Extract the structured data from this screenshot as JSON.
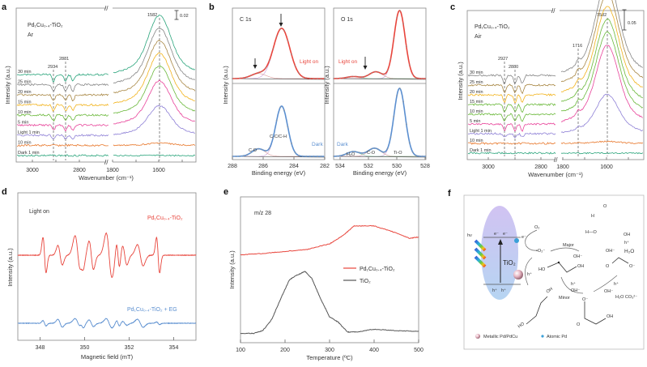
{
  "figure": {
    "panels": [
      "a",
      "b",
      "c",
      "d",
      "e",
      "f"
    ]
  },
  "chart_data": [
    {
      "id": "a",
      "type": "line",
      "title": "Pd1Cu0.4-TiO2",
      "subtitle": "Ar",
      "xlabel": "Wavenumber (cm⁻¹)",
      "ylabel": "Intensity (a.u.)",
      "x_ticks_left": [
        "3000",
        "2800"
      ],
      "x_ticks_right": [
        "1800",
        "1600"
      ],
      "x_range_left": [
        3080,
        2720
      ],
      "x_range_right": [
        1800,
        1480
      ],
      "scale_bar": "0.02",
      "peak_markers": [
        "2934",
        "2881",
        "1582"
      ],
      "series": [
        {
          "name": "Dark 1 min",
          "color": "#2ba57c",
          "offset": 0,
          "peak": 0
        },
        {
          "name": "10 min",
          "color": "#e8772a",
          "offset": 1,
          "peak": 0.05
        },
        {
          "name": "Light 1 min",
          "color": "#8e80d6",
          "offset": 2,
          "peak": 0.6
        },
        {
          "name": "5 min",
          "color": "#e8439a",
          "offset": 3,
          "peak": 0.9
        },
        {
          "name": "10 min",
          "color": "#6ab83a",
          "offset": 4,
          "peak": 1.0
        },
        {
          "name": "15 min",
          "color": "#f2b31c",
          "offset": 5,
          "peak": 1.05
        },
        {
          "name": "20 min",
          "color": "#a88744",
          "offset": 6,
          "peak": 1.1
        },
        {
          "name": "25 min",
          "color": "#858585",
          "offset": 7,
          "peak": 1.15
        },
        {
          "name": "30 min",
          "color": "#2ba57c",
          "offset": 8,
          "peak": 1.2
        }
      ]
    },
    {
      "id": "b-left",
      "type": "line",
      "title": "C 1s",
      "xlabel": "Binding energy (eV)",
      "ylabel": "Intensity (a.u.)",
      "x_ticks": [
        "288",
        "286",
        "284",
        "282"
      ],
      "x_range": [
        288,
        282
      ],
      "series": [
        {
          "name": "Light on",
          "color": "#e8453c",
          "peaks": [
            {
              "center": 284.8,
              "height": 1.0,
              "width": 0.75
            },
            {
              "center": 286.3,
              "height": 0.1,
              "width": 0.7
            }
          ]
        },
        {
          "name": "Dark",
          "color": "#5b8fd0",
          "peaks": [
            {
              "center": 284.8,
              "height": 1.0,
              "width": 0.55
            },
            {
              "center": 286.3,
              "height": 0.15,
              "width": 0.6
            }
          ]
        }
      ],
      "annotations": [
        "C-C/C-H",
        "C-O"
      ]
    },
    {
      "id": "b-right",
      "type": "line",
      "title": "O 1s",
      "xlabel": "Binding energy (eV)",
      "x_ticks": [
        "534",
        "532",
        "530",
        "528"
      ],
      "x_range": [
        535,
        528
      ],
      "series": [
        {
          "name": "Light on",
          "color": "#e8453c",
          "peaks": [
            {
              "center": 530.0,
              "height": 1.0,
              "width": 0.6
            },
            {
              "center": 531.8,
              "height": 0.1,
              "width": 0.7
            },
            {
              "center": 533.5,
              "height": 0.03,
              "width": 0.7
            }
          ]
        },
        {
          "name": "Dark",
          "color": "#5b8fd0",
          "peaks": [
            {
              "center": 530.0,
              "height": 1.0,
              "width": 0.6
            },
            {
              "center": 531.9,
              "height": 0.12,
              "width": 0.7
            },
            {
              "center": 533.5,
              "height": 0.07,
              "width": 0.7
            }
          ]
        }
      ],
      "annotations": [
        "H₂O",
        "C-O",
        "Ti-O"
      ]
    },
    {
      "id": "c",
      "type": "line",
      "title": "Pd1Cu0.4-TiO2",
      "subtitle": "Air",
      "xlabel": "Wavenumber (cm⁻¹)",
      "ylabel": "Intensity (a.u.)",
      "x_ticks_left": [
        "3000",
        "2800"
      ],
      "x_ticks_right": [
        "1800",
        "1600"
      ],
      "scale_bar": "0.05",
      "peak_markers": [
        "2927",
        "2880",
        "1716",
        "1582"
      ],
      "series": [
        {
          "name": "Dark 1 min",
          "color": "#2ba57c",
          "offset": 0,
          "peak": 0
        },
        {
          "name": "10 min",
          "color": "#e8772a",
          "offset": 1,
          "peak": 0.03
        },
        {
          "name": "Light 1 min",
          "color": "#8e80d6",
          "offset": 2,
          "peak": 0.6
        },
        {
          "name": "5 min",
          "color": "#e8439a",
          "offset": 3,
          "peak": 1.2
        },
        {
          "name": "10 min",
          "color": "#6ab83a",
          "offset": 4,
          "peak": 1.25
        },
        {
          "name": "15 min",
          "color": "#6ab83a",
          "offset": 5,
          "peak": 1.3
        },
        {
          "name": "20 min",
          "color": "#f2b31c",
          "offset": 6,
          "peak": 1.35
        },
        {
          "name": "25 min",
          "color": "#a88744",
          "offset": 7,
          "peak": 1.4
        },
        {
          "name": "30 min",
          "color": "#858585",
          "offset": 8,
          "peak": 1.45
        }
      ]
    },
    {
      "id": "d",
      "type": "line",
      "title": "Light on",
      "xlabel": "Magnetic field (mT)",
      "ylabel": "Intensity (a.u.)",
      "x_ticks": [
        "348",
        "350",
        "352",
        "354"
      ],
      "x_range": [
        347,
        355
      ],
      "series": [
        {
          "name": "Pd1Cu0.4-TiO2",
          "color": "#e8453c",
          "amp": 1.0
        },
        {
          "name": "Pd1Cu0.4-TiO2 + EG",
          "color": "#5b8fd0",
          "amp": 0.35
        }
      ],
      "lines_at": [
        348.2,
        348.9,
        349.7,
        349.9,
        350.3,
        351.1,
        351.5,
        351.8,
        352.5,
        353.3
      ]
    },
    {
      "id": "e",
      "type": "line",
      "title": "m/z 28",
      "xlabel": "Temperature (ºC)",
      "ylabel": "Intensity (a.u.)",
      "x_ticks": [
        "100",
        "200",
        "300",
        "400",
        "500"
      ],
      "x_range": [
        100,
        500
      ],
      "legend": "center-right",
      "series": [
        {
          "name": "Pd1Cu0.4-TiO2",
          "color": "#e8453c",
          "x": [
            100,
            150,
            200,
            250,
            300,
            330,
            355,
            400,
            440,
            480,
            500
          ],
          "y": [
            0.62,
            0.63,
            0.645,
            0.66,
            0.7,
            0.76,
            0.83,
            0.83,
            0.79,
            0.74,
            0.75
          ]
        },
        {
          "name": "TiO2",
          "color": "#555555",
          "x": [
            100,
            130,
            150,
            170,
            190,
            210,
            225,
            245,
            260,
            280,
            300,
            320,
            340,
            360,
            400,
            450,
            500
          ],
          "y": [
            0.05,
            0.05,
            0.07,
            0.15,
            0.3,
            0.44,
            0.47,
            0.5,
            0.45,
            0.3,
            0.17,
            0.13,
            0.06,
            0.06,
            0.08,
            0.07,
            0.065
          ]
        }
      ]
    }
  ],
  "labels": {
    "a": {
      "letter": "a",
      "sample": "Pd₁Cu₀.₄-TiO₂",
      "atm": "Ar",
      "scale": "0.02",
      "xlabel": "Wavenumber (cm⁻¹)",
      "ylabel": "Intensity (a.u.)",
      "p1": "2934",
      "p2": "2881",
      "p3": "1582",
      "t1": "3000",
      "t2": "2800",
      "t3": "1800",
      "t4": "1600",
      "series": [
        "30 min",
        "25 min",
        "20 min",
        "15 min",
        "10 min",
        "5 min",
        "Light 1 min",
        "10 min",
        "Dark 1 min"
      ]
    },
    "b": {
      "letter": "b",
      "c1s": "C 1s",
      "o1s": "O 1s",
      "light": "Light on",
      "dark": "Dark",
      "cc": "C-C/C-H",
      "co": "C-O",
      "h2o": "H₂O",
      "tio": "Ti-O",
      "xlabel": "Binding energy (eV)",
      "ylabel": "Intensity (a.u.)",
      "lt": [
        "288",
        "286",
        "284",
        "282"
      ],
      "rt": [
        "534",
        "532",
        "530",
        "528"
      ]
    },
    "c": {
      "letter": "c",
      "sample": "Pd₁Cu₀.₄-TiO₂",
      "atm": "Air",
      "scale": "0.05",
      "xlabel": "Wavenumber (cm⁻¹)",
      "ylabel": "Intensity (a.u.)",
      "p1": "2927",
      "p2": "2880",
      "p3": "1716",
      "p4": "1582",
      "t1": "3000",
      "t2": "2800",
      "t3": "1800",
      "t4": "1600",
      "series": [
        "30 min",
        "25 min",
        "20 min",
        "15 min",
        "10 min",
        "5 min",
        "Light 1 min",
        "10 min",
        "Dark 1 min"
      ]
    },
    "d": {
      "letter": "d",
      "title": "Light on",
      "s1": "Pd₁Cu₀.₄-TiO₂",
      "s2": "Pd₁Cu₀.₄-TiO₂ + EG",
      "xlabel": "Magnetic field (mT)",
      "ylabel": "Intensity (a.u.)",
      "t": [
        "348",
        "350",
        "352",
        "354"
      ]
    },
    "e": {
      "letter": "e",
      "title": "m/z 28",
      "l1": "Pd₁Cu₀.₄-TiO₂",
      "l2": "TiO₂",
      "xlabel": "Temperature (ºC)",
      "ylabel": "Intensity (a.u.)",
      "t": [
        "100",
        "200",
        "300",
        "400",
        "500"
      ]
    },
    "f": {
      "letter": "f",
      "hv": "hν",
      "e1": "e⁻",
      "e2": "e⁻",
      "e3": "e⁻",
      "h1": "h⁺",
      "h2": "h⁺",
      "h3": "h⁺",
      "tio2": "TiO₂",
      "o2": "O₂",
      "o2rad": "•O₂⁻",
      "major": "Major",
      "minor": "Minor",
      "oh": "OH⁻",
      "h2o": "H₂O",
      "h2oco3": "H₂O CO₃²⁻",
      "legend1": "Metallic Pd/PdCu",
      "legend2": "Atomic Pd"
    }
  }
}
